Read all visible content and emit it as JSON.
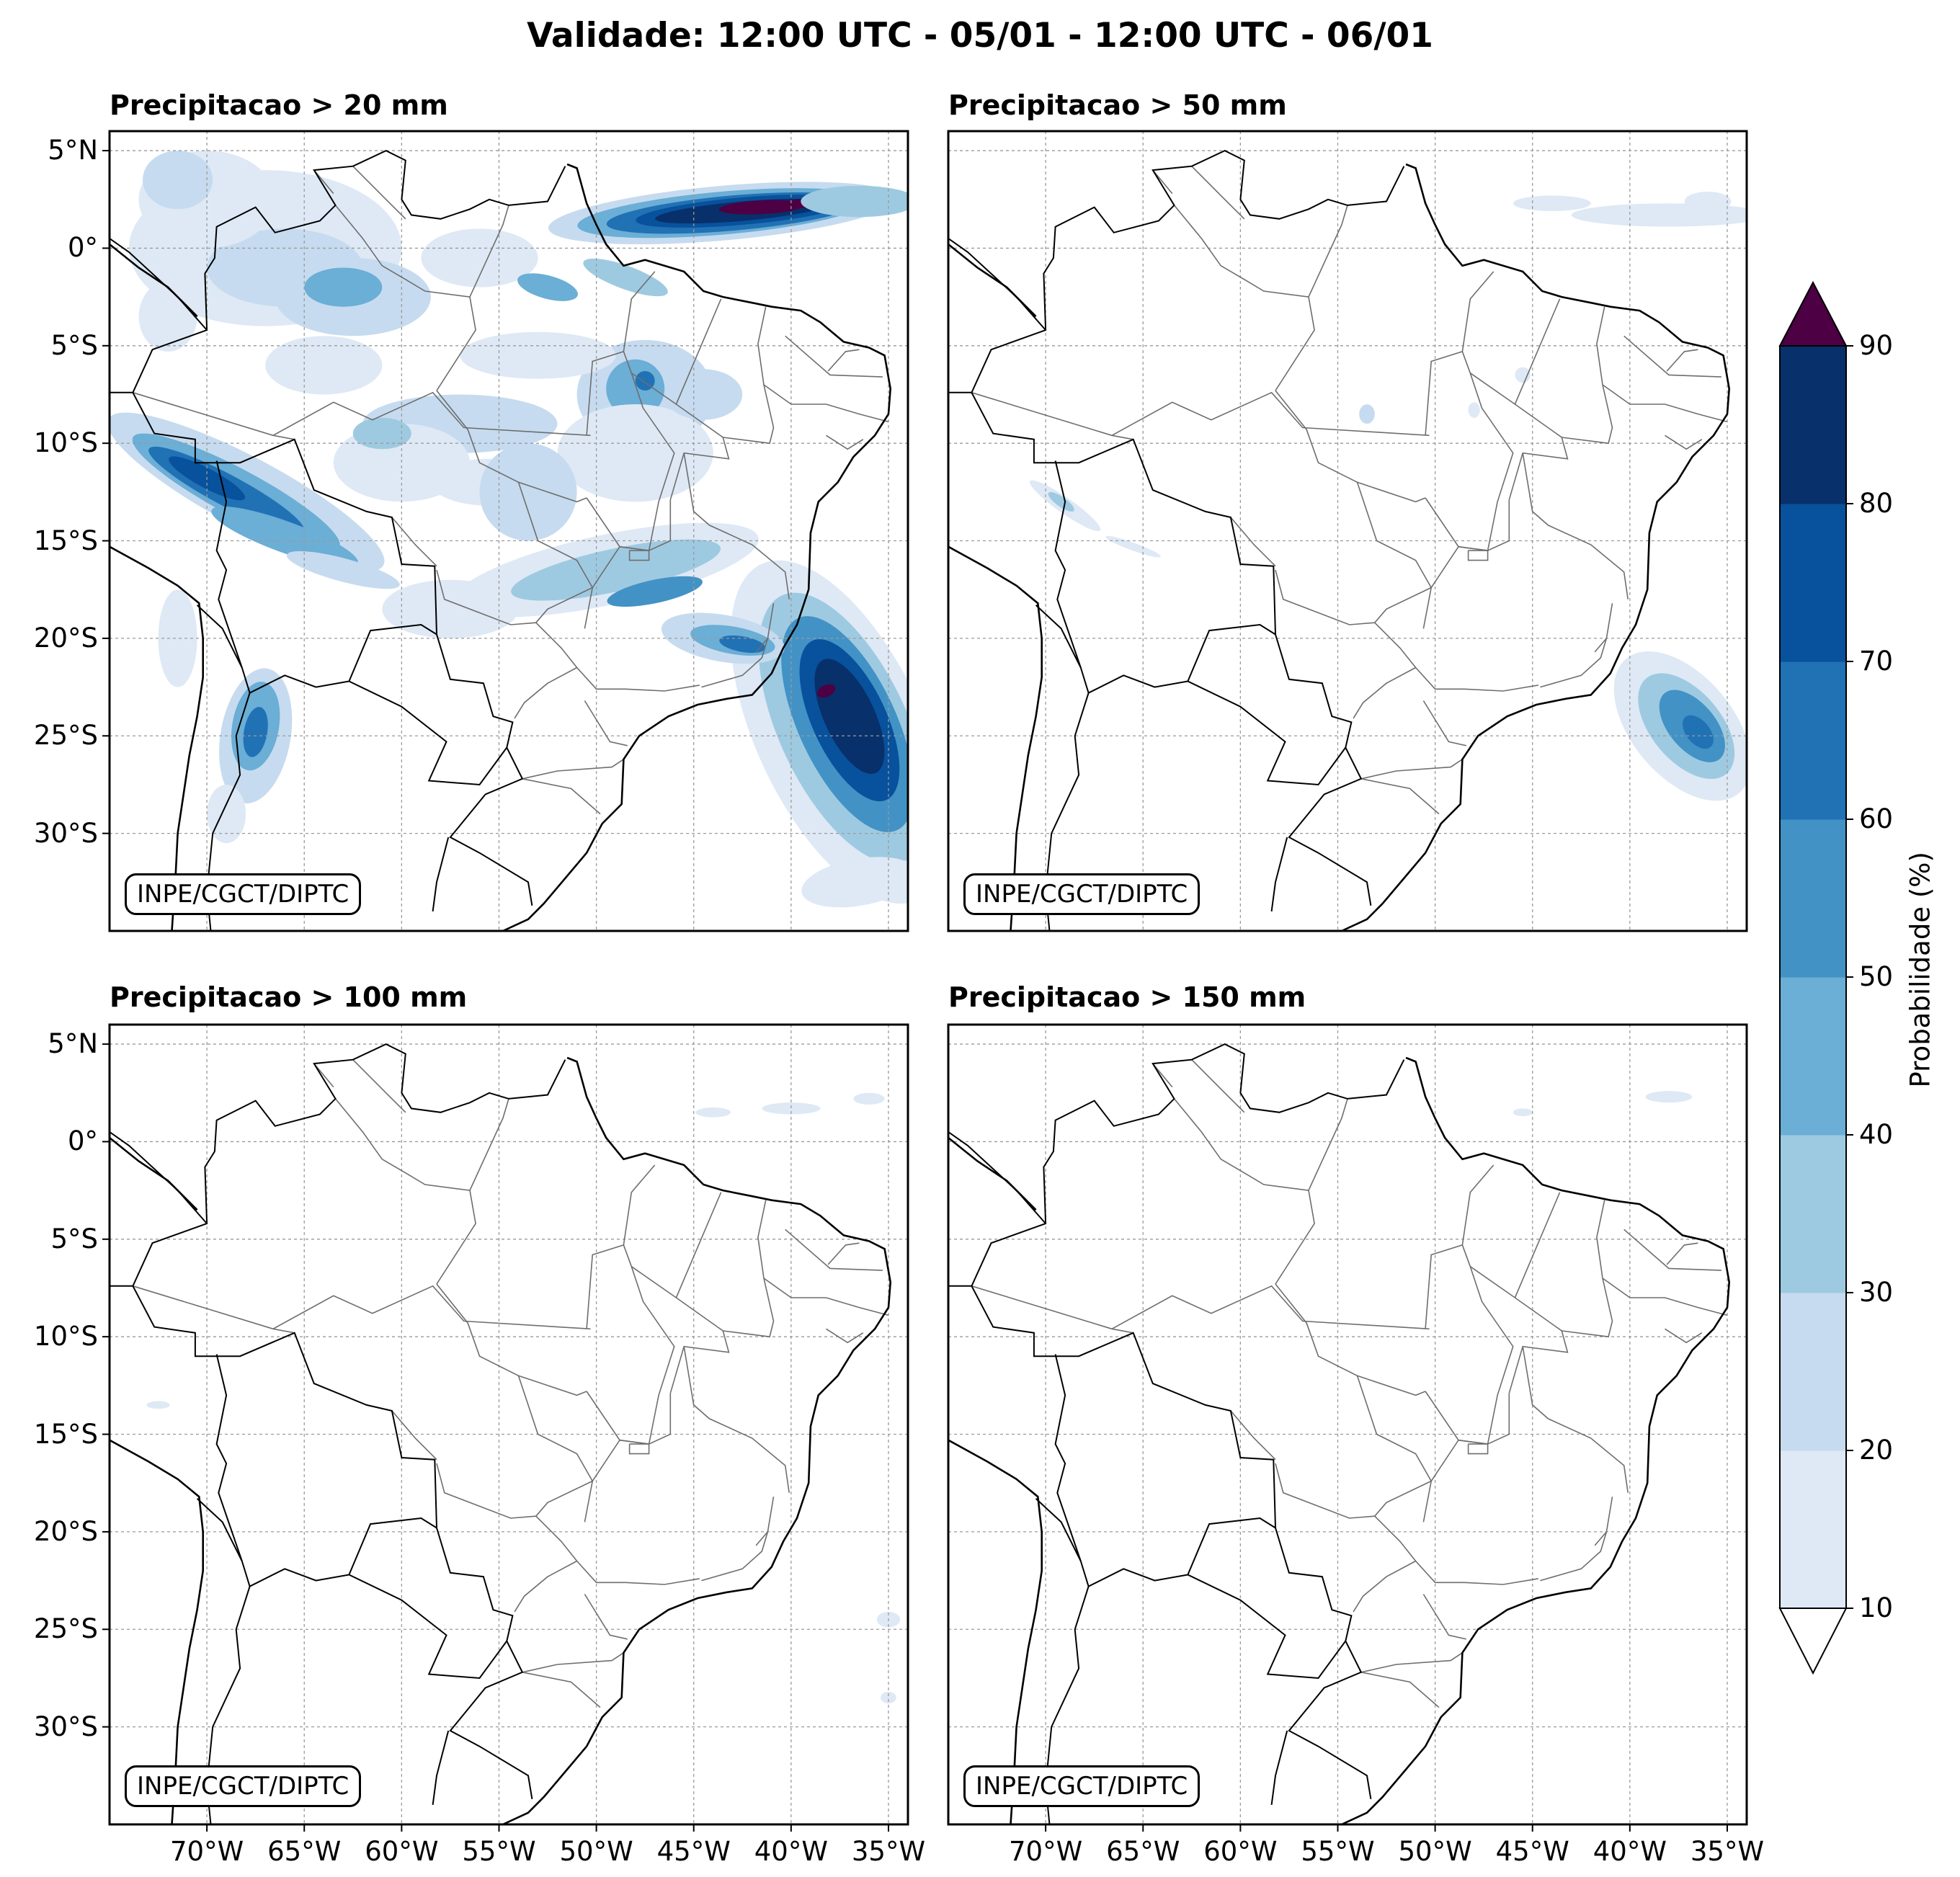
{
  "figure": {
    "title": "Validade: 12:00 UTC - 05/01 - 12:00 UTC - 06/01"
  },
  "panels": [
    {
      "title": "Precipitacao > 20 mm",
      "credit": "INPE/CGCT/DIPTC",
      "show_lat_labels": true,
      "show_lon_labels": false
    },
    {
      "title": "Precipitacao > 50 mm",
      "credit": "INPE/CGCT/DIPTC",
      "show_lat_labels": false,
      "show_lon_labels": false
    },
    {
      "title": "Precipitacao > 100 mm",
      "credit": "INPE/CGCT/DIPTC",
      "show_lat_labels": true,
      "show_lon_labels": true
    },
    {
      "title": "Precipitacao > 150 mm",
      "credit": "INPE/CGCT/DIPTC",
      "show_lat_labels": false,
      "show_lon_labels": true
    }
  ],
  "map_extent": {
    "lon_min": -75,
    "lon_max": -34,
    "lat_min": -35,
    "lat_max": 6
  },
  "lat_ticks": [
    {
      "value": 5,
      "label": "5°N"
    },
    {
      "value": 0,
      "label": "0°"
    },
    {
      "value": -5,
      "label": "5°S"
    },
    {
      "value": -10,
      "label": "10°S"
    },
    {
      "value": -15,
      "label": "15°S"
    },
    {
      "value": -20,
      "label": "20°S"
    },
    {
      "value": -25,
      "label": "25°S"
    },
    {
      "value": -30,
      "label": "30°S"
    }
  ],
  "lon_ticks": [
    {
      "value": -70,
      "label": "70°W"
    },
    {
      "value": -65,
      "label": "65°W"
    },
    {
      "value": -60,
      "label": "60°W"
    },
    {
      "value": -55,
      "label": "55°W"
    },
    {
      "value": -50,
      "label": "50°W"
    },
    {
      "value": -45,
      "label": "45°W"
    },
    {
      "value": -40,
      "label": "40°W"
    },
    {
      "value": -35,
      "label": "35°W"
    }
  ],
  "colorbar": {
    "label": "Probabilidade (%)",
    "ticks": [
      "10",
      "20",
      "30",
      "40",
      "50",
      "60",
      "70",
      "80",
      "90"
    ],
    "colors": [
      "#dee9f5",
      "#c6dbef",
      "#9ecae1",
      "#6baed6",
      "#4292c6",
      "#2171b5",
      "#08519c",
      "#08306b"
    ],
    "over_color": "#4d0043",
    "under_color": "#ffffff"
  },
  "map_colors": {
    "coast": "#000000",
    "states": "#6e6e6e",
    "grid": "#9a9a9a"
  }
}
